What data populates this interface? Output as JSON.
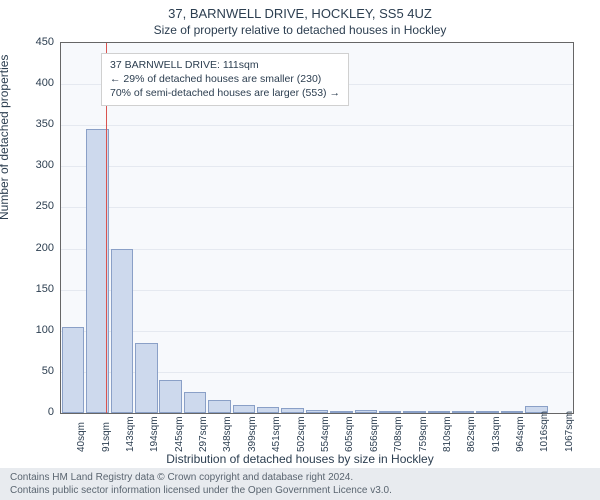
{
  "title_main": "37, BARNWELL DRIVE, HOCKLEY, SS5 4UZ",
  "title_sub": "Size of property relative to detached houses in Hockley",
  "ylabel": "Number of detached properties",
  "xlabel": "Distribution of detached houses by size in Hockley",
  "chart": {
    "type": "histogram",
    "background_color": "#f7f9fc",
    "grid_color": "#e5e9f0",
    "border_color": "#666666",
    "bar_fill": "#cdd9ed",
    "bar_stroke": "#8aa0c7",
    "marker_color": "#d9534f",
    "ylim": [
      0,
      450
    ],
    "ytick_step": 50,
    "yticks": [
      0,
      50,
      100,
      150,
      200,
      250,
      300,
      350,
      400,
      450
    ],
    "xticks": [
      "40sqm",
      "91sqm",
      "143sqm",
      "194sqm",
      "245sqm",
      "297sqm",
      "348sqm",
      "399sqm",
      "451sqm",
      "502sqm",
      "554sqm",
      "605sqm",
      "656sqm",
      "708sqm",
      "759sqm",
      "810sqm",
      "862sqm",
      "913sqm",
      "964sqm",
      "1016sqm",
      "1067sqm"
    ],
    "bars": [
      105,
      345,
      200,
      85,
      40,
      25,
      16,
      10,
      7,
      6,
      4,
      3,
      4,
      3,
      2,
      3,
      2,
      2,
      3,
      8,
      0
    ],
    "marker_index": 1.35,
    "label_fontsize": 12,
    "tick_fontsize": 11
  },
  "annotation": {
    "line1": "37 BARNWELL DRIVE: 111sqm",
    "line2": "← 29% of detached houses are smaller (230)",
    "line3": "70% of semi-detached houses are larger (553) →"
  },
  "footer": {
    "line1": "Contains HM Land Registry data © Crown copyright and database right 2024.",
    "line2": "Contains public sector information licensed under the Open Government Licence v3.0."
  }
}
